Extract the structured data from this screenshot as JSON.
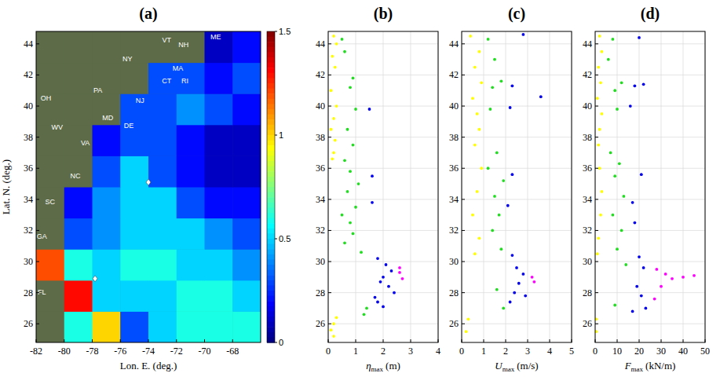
{
  "chart_data": [
    {
      "type": "heatmap",
      "title": "(a)",
      "x_label": "Lon. E. (deg.)",
      "y_label": "Lat. N. (deg.)",
      "xlim": [
        -82,
        -66
      ],
      "ylim": [
        24.8,
        44.8
      ],
      "xticks": [
        -82,
        -80,
        -78,
        -76,
        -74,
        -72,
        -70,
        -68
      ],
      "yticks": [
        26,
        28,
        30,
        32,
        34,
        36,
        38,
        40,
        42,
        44
      ],
      "lon_edges": [
        -82,
        -80,
        -78,
        -76,
        -74,
        -72,
        -70,
        -68,
        -66
      ],
      "lat_edges": [
        24.8,
        26.8,
        28.8,
        30.8,
        32.8,
        34.8,
        36.8,
        38.8,
        40.8,
        42.8,
        44.8
      ],
      "cells": [
        [
          null,
          0.6,
          1.0,
          0.3,
          0.5,
          0.6,
          0.6,
          0.6
        ],
        [
          null,
          1.3,
          0.5,
          0.5,
          0.5,
          0.6,
          0.6,
          0.5
        ],
        [
          1.2,
          0.6,
          0.5,
          0.6,
          0.6,
          0.5,
          0.5,
          0.4
        ],
        [
          null,
          0.3,
          0.4,
          0.5,
          0.5,
          0.5,
          0.4,
          0.3
        ],
        [
          null,
          0.2,
          0.4,
          0.5,
          0.5,
          0.3,
          0.2,
          0.2
        ],
        [
          null,
          null,
          0.3,
          0.5,
          0.3,
          0.2,
          0.1,
          0.1
        ],
        [
          null,
          null,
          0.2,
          0.3,
          0.3,
          0.2,
          0.1,
          0.1
        ],
        [
          null,
          null,
          null,
          0.3,
          0.3,
          0.4,
          0.3,
          0.2
        ],
        [
          null,
          null,
          null,
          null,
          0.3,
          0.3,
          0.2,
          0.3
        ],
        [
          null,
          null,
          null,
          null,
          null,
          null,
          0.1,
          0.2
        ]
      ],
      "colorbar": {
        "range": [
          0,
          1.5
        ],
        "ticks": [
          0,
          0.5,
          1,
          1.5
        ]
      },
      "points": {
        "lon": [
          -74.0,
          -77.8
        ],
        "lat": [
          35.1,
          28.9
        ]
      },
      "labels": [
        {
          "text": "ME",
          "lon": -69.2,
          "lat": 44.4
        },
        {
          "text": "NY",
          "lon": -75.5,
          "lat": 43.0
        },
        {
          "text": "VT",
          "lon": -72.7,
          "lat": 44.2
        },
        {
          "text": "NH",
          "lon": -71.5,
          "lat": 43.9
        },
        {
          "text": "MA",
          "lon": -71.9,
          "lat": 42.4
        },
        {
          "text": "CT",
          "lon": -72.7,
          "lat": 41.6
        },
        {
          "text": "RI",
          "lon": -71.4,
          "lat": 41.6
        },
        {
          "text": "PA",
          "lon": -77.6,
          "lat": 41.0
        },
        {
          "text": "NJ",
          "lon": -74.6,
          "lat": 40.3
        },
        {
          "text": "OH",
          "lon": -81.3,
          "lat": 40.5
        },
        {
          "text": "MD",
          "lon": -76.9,
          "lat": 39.2
        },
        {
          "text": "DE",
          "lon": -75.4,
          "lat": 38.7
        },
        {
          "text": "WV",
          "lon": -80.5,
          "lat": 38.6
        },
        {
          "text": "VA",
          "lon": -78.5,
          "lat": 37.6
        },
        {
          "text": "NC",
          "lon": -79.2,
          "lat": 35.5
        },
        {
          "text": "SC",
          "lon": -81.0,
          "lat": 33.8
        },
        {
          "text": "GA",
          "lon": -81.6,
          "lat": 31.6
        },
        {
          "text": "FL",
          "lon": -81.6,
          "lat": 28.0
        }
      ]
    },
    {
      "type": "scatter",
      "title": "(b)",
      "x_label": {
        "symbol": "η",
        "subscript": "max",
        "unit": "(m)"
      },
      "xlim": [
        0,
        4
      ],
      "xticks": [
        0,
        1,
        2,
        3,
        4
      ],
      "ylim": [
        24.8,
        44.8
      ],
      "yticks": [
        26,
        28,
        30,
        32,
        34,
        36,
        38,
        40,
        42,
        44
      ],
      "grid": true,
      "series": [
        {
          "color": "#ffff00",
          "x": [
            0.2,
            0.3,
            0.15,
            0.25,
            0.1,
            0.3,
            0.2,
            0.1,
            0.25,
            0.2,
            0.15,
            0.3,
            0.2,
            0.1,
            0.2
          ],
          "y": [
            44.5,
            44.0,
            43.2,
            42.5,
            41.0,
            40.0,
            39.2,
            38.5,
            37.8,
            37.0,
            36.6,
            26.4,
            26.0,
            25.6,
            25.2
          ]
        },
        {
          "color": "#22dd22",
          "x": [
            0.5,
            0.6,
            0.9,
            0.8,
            1.0,
            0.7,
            0.9,
            0.6,
            0.8,
            1.1,
            0.7,
            1.0,
            0.5,
            0.8,
            0.9,
            0.6,
            1.2,
            1.4,
            1.3
          ],
          "y": [
            44.3,
            43.5,
            41.8,
            41.2,
            39.8,
            38.5,
            37.5,
            36.5,
            35.8,
            35.0,
            34.5,
            33.5,
            33.0,
            32.5,
            31.8,
            31.2,
            30.6,
            27.0,
            26.6
          ]
        },
        {
          "color": "#0000ee",
          "x": [
            1.6,
            1.8,
            2.1,
            2.3,
            2.0,
            1.9,
            2.2,
            2.4,
            1.7,
            1.8,
            2.0,
            1.5,
            1.6
          ],
          "y": [
            33.8,
            30.2,
            29.8,
            29.4,
            29.0,
            28.7,
            28.4,
            28.0,
            27.7,
            27.4,
            27.1,
            39.8,
            35.5
          ]
        },
        {
          "color": "#ff00ff",
          "x": [
            2.6,
            2.7,
            2.6
          ],
          "y": [
            29.6,
            28.9,
            29.3
          ]
        }
      ]
    },
    {
      "type": "scatter",
      "title": "(c)",
      "x_label": {
        "symbol": "U",
        "subscript": "max",
        "unit": "(m/s)"
      },
      "xlim": [
        0,
        5
      ],
      "xticks": [
        0,
        1,
        2,
        3,
        4,
        5
      ],
      "ylim": [
        24.8,
        44.8
      ],
      "yticks": [
        26,
        28,
        30,
        32,
        34,
        36,
        38,
        40,
        42,
        44
      ],
      "grid": true,
      "series": [
        {
          "color": "#ffff00",
          "x": [
            0.4,
            0.8,
            0.6,
            0.9,
            0.5,
            0.7,
            0.8,
            0.6,
            0.9,
            0.7,
            0.5,
            0.8,
            0.6,
            0.3,
            0.2
          ],
          "y": [
            44.5,
            43.5,
            42.5,
            41.5,
            40.5,
            39.5,
            38.5,
            37.5,
            36.0,
            34.5,
            33.0,
            31.5,
            30.5,
            26.3,
            25.5
          ]
        },
        {
          "color": "#22dd22",
          "x": [
            1.2,
            1.5,
            1.4,
            1.8,
            1.3,
            1.6,
            1.2,
            1.9,
            1.5,
            1.7,
            1.4,
            1.8,
            1.6,
            1.9
          ],
          "y": [
            44.3,
            43.0,
            41.2,
            41.6,
            39.8,
            37.0,
            36.0,
            35.2,
            34.2,
            33.0,
            32.0,
            30.8,
            28.2,
            27.0
          ]
        },
        {
          "color": "#0000ee",
          "x": [
            2.8,
            2.3,
            3.6,
            2.2,
            2.3,
            2.1,
            2.5,
            2.8,
            2.6,
            2.4,
            2.9,
            2.2,
            2.3
          ],
          "y": [
            44.6,
            41.3,
            40.6,
            39.9,
            35.6,
            33.6,
            29.6,
            29.2,
            28.6,
            28.0,
            27.8,
            27.4,
            30.4
          ]
        },
        {
          "color": "#ff00ff",
          "x": [
            3.2,
            3.3
          ],
          "y": [
            29.0,
            28.7
          ]
        }
      ]
    },
    {
      "type": "scatter",
      "title": "(d)",
      "x_label": {
        "symbol": "F",
        "subscript": "max",
        "unit": "(kN/m)"
      },
      "xlim": [
        0,
        50
      ],
      "xticks": [
        0,
        10,
        20,
        30,
        40,
        50
      ],
      "ylim": [
        24.8,
        44.8
      ],
      "yticks": [
        26,
        28,
        30,
        32,
        34,
        36,
        38,
        40,
        42,
        44
      ],
      "grid": true,
      "series": [
        {
          "color": "#ffff00",
          "x": [
            2,
            3,
            1.5,
            2.5,
            1,
            3,
            2,
            1.5,
            2,
            3,
            2.5,
            1.5,
            1,
            0.5,
            0.5
          ],
          "y": [
            44.5,
            43.5,
            42.5,
            41.5,
            40.5,
            39.5,
            38.5,
            37.5,
            36.0,
            34.5,
            33.0,
            31.5,
            30.5,
            26.3,
            25.5
          ]
        },
        {
          "color": "#22dd22",
          "x": [
            8,
            6,
            12,
            9,
            10,
            7,
            11,
            9,
            13,
            8,
            12,
            10,
            14,
            9
          ],
          "y": [
            44.3,
            43.0,
            41.5,
            41.0,
            39.8,
            37.0,
            36.3,
            35.5,
            34.2,
            33.0,
            32.0,
            30.8,
            29.8,
            27.2
          ]
        },
        {
          "color": "#0000ee",
          "x": [
            20,
            18,
            22,
            16,
            21,
            17,
            18,
            20,
            22,
            19,
            21,
            23,
            17
          ],
          "y": [
            44.4,
            41.3,
            41.4,
            40.0,
            35.6,
            33.8,
            32.5,
            30.3,
            29.6,
            28.4,
            27.8,
            27.0,
            26.8
          ]
        },
        {
          "color": "#ff00ff",
          "x": [
            28,
            32,
            40,
            35,
            30,
            45,
            27
          ],
          "y": [
            29.5,
            29.2,
            29.0,
            28.9,
            28.4,
            29.1,
            27.6
          ]
        }
      ]
    }
  ]
}
